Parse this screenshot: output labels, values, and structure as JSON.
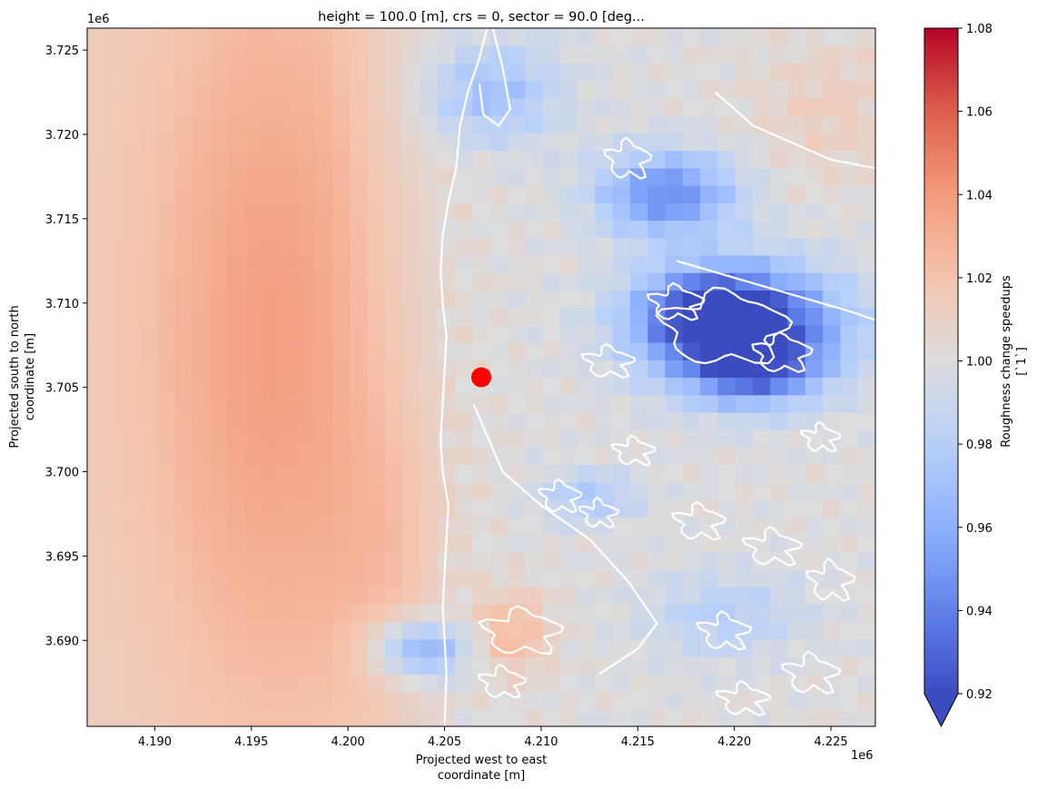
{
  "chart_data": {
    "type": "heatmap",
    "title": "height = 100.0 [m], crs = 0, sector = 90.0 [deg...",
    "xlabel_line1": "Projected west to east",
    "xlabel_line2": "coordinate [m]",
    "ylabel_line1": "Projected south to north",
    "ylabel_line2": "coordinate [m]",
    "x_offset_label": "1e6",
    "y_offset_label": "1e6",
    "xlim": [
      4.1865,
      4.2273
    ],
    "ylim": [
      3.6849,
      3.7263
    ],
    "x_ticks": [
      4.19,
      4.195,
      4.2,
      4.205,
      4.21,
      4.215,
      4.22,
      4.225
    ],
    "x_tick_labels": [
      "4.190",
      "4.195",
      "4.200",
      "4.205",
      "4.210",
      "4.215",
      "4.220",
      "4.225"
    ],
    "y_ticks": [
      3.69,
      3.695,
      3.7,
      3.705,
      3.71,
      3.715,
      3.72,
      3.725
    ],
    "y_tick_labels": [
      "3.690",
      "3.695",
      "3.700",
      "3.705",
      "3.710",
      "3.715",
      "3.720",
      "3.725"
    ],
    "colorbar": {
      "label_line1": "Roughness change speedups",
      "label_line2": "[`1`]",
      "vmin": 0.92,
      "vmax": 1.08,
      "extend": "min",
      "ticks": [
        0.92,
        0.94,
        0.96,
        0.98,
        1.0,
        1.02,
        1.04,
        1.06,
        1.08
      ],
      "tick_labels": [
        "0.92",
        "0.94",
        "0.96",
        "0.98",
        "1.00",
        "1.02",
        "1.04",
        "1.06",
        "1.08"
      ],
      "colormap": "coolwarm"
    },
    "marker": {
      "x": 4.2069,
      "y": 3.7056,
      "color": "#ff0000"
    },
    "contour_color": "#ffffff",
    "grid": false,
    "grid_shape": [
      45,
      40
    ],
    "regions": [
      {
        "feature": "western sea band",
        "cx": 4.196,
        "cy": 3.708,
        "rx": 0.0065,
        "ry": 0.023,
        "value": 0.025
      },
      {
        "feature": "near-coast offshore",
        "cx": 4.2025,
        "cy": 3.695,
        "rx": 0.003,
        "ry": 0.01,
        "value": 0.012
      },
      {
        "feature": "north-east blue patch",
        "cx": 4.2165,
        "cy": 3.7165,
        "rx": 0.0035,
        "ry": 0.0025,
        "value": -0.055
      },
      {
        "feature": "north coast dune",
        "cx": 4.2075,
        "cy": 3.7225,
        "rx": 0.0035,
        "ry": 0.003,
        "value": -0.03
      },
      {
        "feature": "central blue east 1",
        "cx": 4.2205,
        "cy": 3.7085,
        "rx": 0.005,
        "ry": 0.0035,
        "value": -0.085
      },
      {
        "feature": "central blue east 2",
        "cx": 4.2185,
        "cy": 3.7095,
        "rx": 0.0035,
        "ry": 0.0025,
        "value": -0.04
      },
      {
        "feature": "south-east blue patch",
        "cx": 4.221,
        "cy": 3.706,
        "rx": 0.003,
        "ry": 0.002,
        "value": -0.04
      },
      {
        "feature": "south-west blue patch",
        "cx": 4.2037,
        "cy": 3.6895,
        "rx": 0.0025,
        "ry": 0.0018,
        "value": -0.045
      },
      {
        "feature": "south-west warm spot",
        "cx": 4.2085,
        "cy": 3.6905,
        "rx": 0.002,
        "ry": 0.0025,
        "value": 0.025
      },
      {
        "feature": "south-east scattered blue",
        "cx": 4.2195,
        "cy": 3.6915,
        "rx": 0.004,
        "ry": 0.0025,
        "value": -0.02
      },
      {
        "feature": "north-east warm corner",
        "cx": 4.225,
        "cy": 3.7215,
        "rx": 0.004,
        "ry": 0.004,
        "value": 0.012
      },
      {
        "feature": "inland mid blue",
        "cx": 4.2125,
        "cy": 3.6985,
        "rx": 0.0025,
        "ry": 0.0015,
        "value": -0.025
      }
    ]
  }
}
